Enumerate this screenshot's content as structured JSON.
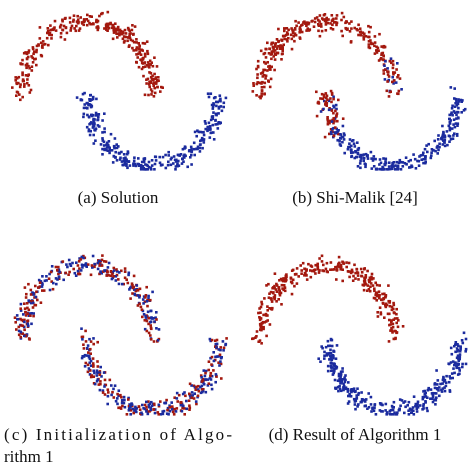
{
  "figure": {
    "panels": [
      {
        "caption": [
          "(a) Solution"
        ]
      },
      {
        "caption": [
          "(b) Shi-Malik [24]"
        ]
      },
      {
        "caption": [
          "(c) Initialization of Algo-",
          "rithm 1"
        ]
      },
      {
        "caption": [
          "(d) Result of Algorithm 1"
        ]
      }
    ]
  }
}
